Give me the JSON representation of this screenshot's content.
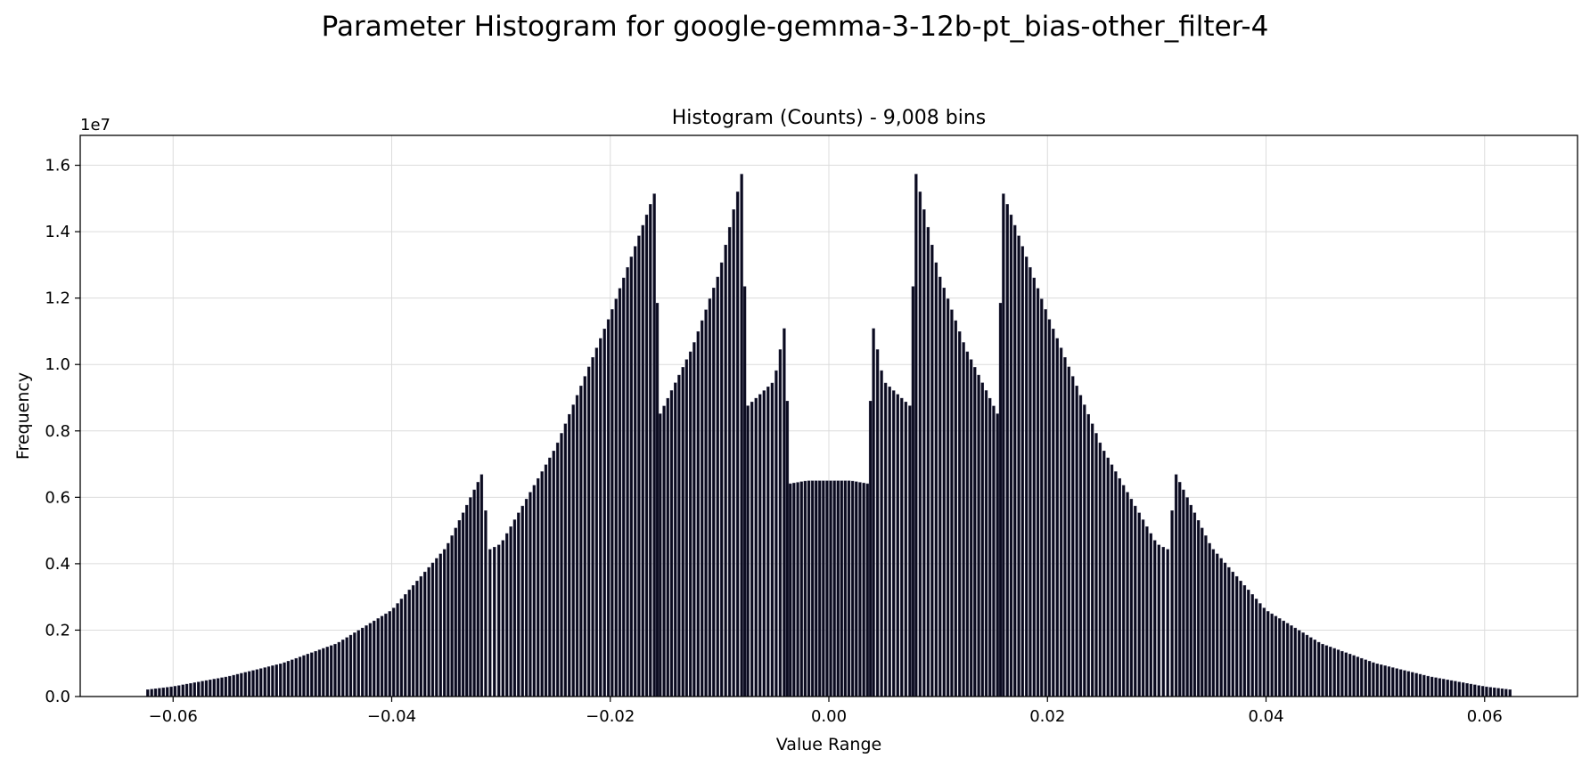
{
  "figure": {
    "suptitle": "Parameter Histogram for google-gemma-3-12b-pt_bias-other_filter-4"
  },
  "chart_data": {
    "type": "bar",
    "title": "Histogram (Counts) - 9,008 bins",
    "xlabel": "Value Range",
    "ylabel": "Frequency",
    "y_offset_label": "1e7",
    "y_scale": 10000000,
    "xlim": [
      -0.0685,
      0.0685
    ],
    "ylim": [
      0,
      1.69
    ],
    "grid": true,
    "bar_color": "#0a0a1e",
    "bar_edge_color": "#3a3a55",
    "x_ticks": [
      -0.06,
      -0.04,
      -0.02,
      0.0,
      0.02,
      0.04,
      0.06
    ],
    "x_tick_labels": [
      "−0.06",
      "−0.04",
      "−0.02",
      "0.00",
      "0.02",
      "0.04",
      "0.06"
    ],
    "y_ticks": [
      0.0,
      0.2,
      0.4,
      0.6,
      0.8,
      1.0,
      1.2,
      1.4,
      1.6
    ],
    "y_tick_labels": [
      "0.0",
      "0.2",
      "0.4",
      "0.6",
      "0.8",
      "1.0",
      "1.2",
      "1.4",
      "1.6"
    ],
    "series": [
      {
        "x": [
          -0.0625,
          -0.06,
          -0.055,
          -0.05,
          -0.045,
          -0.04,
          -0.035,
          -0.0316,
          -0.0312,
          -0.03,
          -0.025,
          -0.02,
          -0.0158,
          -0.0156,
          -0.0125,
          -0.01,
          -0.0078,
          -0.0076,
          -0.005,
          -0.0039,
          -0.0037,
          -0.002,
          0.0,
          0.002,
          0.0037,
          0.0039,
          0.005,
          0.0076,
          0.0078,
          0.01,
          0.0125,
          0.0156,
          0.0158,
          0.02,
          0.025,
          0.03,
          0.0312,
          0.0316,
          0.035,
          0.04,
          0.045,
          0.05,
          0.055,
          0.06,
          0.0625
        ],
        "values": [
          0.02,
          0.03,
          0.06,
          0.1,
          0.16,
          0.26,
          0.45,
          0.68,
          0.44,
          0.46,
          0.75,
          1.15,
          1.53,
          0.84,
          1.05,
          1.28,
          1.6,
          0.87,
          0.95,
          1.14,
          0.64,
          0.65,
          0.65,
          0.65,
          0.64,
          1.14,
          0.95,
          0.87,
          1.6,
          1.28,
          1.05,
          0.84,
          1.53,
          1.15,
          0.75,
          0.46,
          0.44,
          0.68,
          0.45,
          0.26,
          0.16,
          0.1,
          0.06,
          0.03,
          0.02
        ]
      }
    ]
  }
}
